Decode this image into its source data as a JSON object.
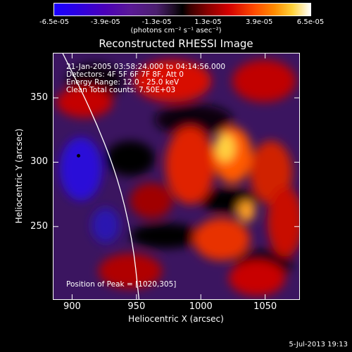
{
  "colorbar": {
    "ticks": [
      "-6.5e-05",
      "-3.9e-05",
      "-1.3e-05",
      "1.3e-05",
      "3.9e-05",
      "6.5e-05"
    ],
    "units": "(photons cm⁻² s⁻¹ asec⁻²)"
  },
  "chart_data": {
    "type": "heatmap",
    "title": "Reconstructed RHESSI Image",
    "xlabel": "Heliocentric X (arcsec)",
    "ylabel": "Heliocentric Y (arcsec)",
    "xlim": [
      885,
      1077
    ],
    "ylim": [
      193,
      385
    ],
    "xticks": [
      900,
      950,
      1000,
      1050
    ],
    "yticks": [
      250,
      300,
      350
    ],
    "annotations": {
      "time": "21-Jan-2005 03:58:24.000 to 04:14:56.000",
      "detectors": "Detectors: 4F 5F 6F 7F 8F, Att 0",
      "energy": "Energy Range: 12.0 - 25.0 keV",
      "clean": "Clean    Total counts: 7.50E+03",
      "peak": "Position of Peak = [1020,305]"
    },
    "peak_position": [
      1020,
      305
    ],
    "marked_min": [
      905,
      305
    ],
    "limb_curve": [
      [
        890,
        390
      ],
      [
        915,
        340
      ],
      [
        935,
        290
      ],
      [
        947,
        240
      ],
      [
        952,
        193
      ]
    ]
  },
  "footer": {
    "date": "5-Jul-2013 19:13"
  },
  "colors": {
    "background": "#000000",
    "text": "#ffffff"
  }
}
